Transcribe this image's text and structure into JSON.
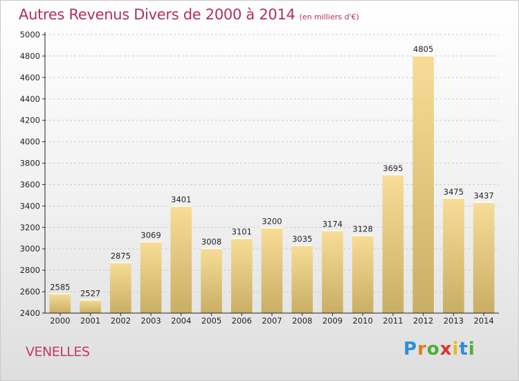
{
  "header": {
    "title": "Autres Revenus Divers de 2000 à 2014",
    "unit": "(en milliers d'€)"
  },
  "footer": {
    "city": "VENELLES",
    "logo": {
      "letters": [
        "P",
        "r",
        "o",
        "x",
        "i",
        "t",
        "i"
      ],
      "colors": [
        "#2a8fd8",
        "#e07b1a",
        "#4cae3a",
        "#d9352f",
        "#e6b91e",
        "#2a8fd8",
        "#4cae3a"
      ]
    }
  },
  "chart_data": {
    "type": "bar",
    "title": "Autres Revenus Divers de 2000 à 2014",
    "categories": [
      "2000",
      "2001",
      "2002",
      "2003",
      "2004",
      "2005",
      "2006",
      "2007",
      "2008",
      "2009",
      "2010",
      "2011",
      "2012",
      "2013",
      "2014"
    ],
    "values": [
      2585,
      2527,
      2875,
      3069,
      3401,
      3008,
      3101,
      3200,
      3035,
      3174,
      3128,
      3695,
      4805,
      3475,
      3437
    ],
    "ylim": [
      2400,
      5000
    ],
    "yticks": [
      2400,
      2600,
      2800,
      3000,
      3200,
      3400,
      3600,
      3800,
      4000,
      4200,
      4400,
      4600,
      4800,
      5000
    ],
    "grid": true,
    "colors": {
      "bar_top": "#f7dd97",
      "bar_bottom": "#c9ae65",
      "grid": "#cccccc",
      "axis": "#222222"
    }
  }
}
